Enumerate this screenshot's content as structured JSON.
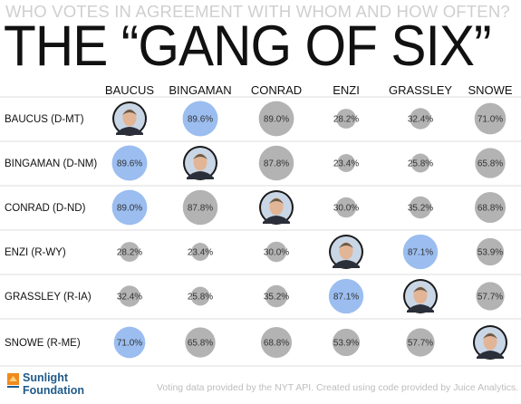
{
  "header": {
    "subtitle": "WHO VOTES IN AGREEMENT WITH WHOM AND HOW OFTEN?",
    "title": "THE “GANG OF SIX”"
  },
  "footer": {
    "credit": "Voting data provided by the NYT API. Created using code provided by Juice Analytics.",
    "logo_line1": "Sunlight",
    "logo_line2": "Foundation"
  },
  "colors": {
    "highlight": "#9bbdf0",
    "normal": "#b3b3b3",
    "logo_orange": "#f08a1c",
    "logo_blue": "#1f5a8a"
  },
  "chart_data": {
    "type": "heatmap",
    "title": "THE “GANG OF SIX”",
    "subtitle": "WHO VOTES IN AGREEMENT WITH WHOM AND HOW OFTEN?",
    "columns": [
      "BAUCUS",
      "BINGAMAN",
      "CONRAD",
      "ENZI",
      "GRASSLEY",
      "SNOWE"
    ],
    "rows": [
      "BAUCUS (D-MT)",
      "BINGAMAN (D-NM)",
      "CONRAD (D-ND)",
      "ENZI (R-WY)",
      "GRASSLEY (R-IA)",
      "SNOWE (R-ME)"
    ],
    "values": [
      [
        null,
        89.6,
        89.0,
        28.2,
        32.4,
        71.0
      ],
      [
        89.6,
        null,
        87.8,
        23.4,
        25.8,
        65.8
      ],
      [
        89.0,
        87.8,
        null,
        30.0,
        35.2,
        68.8
      ],
      [
        28.2,
        23.4,
        30.0,
        null,
        87.1,
        53.9
      ],
      [
        32.4,
        25.8,
        35.2,
        87.1,
        null,
        57.7
      ],
      [
        71.0,
        65.8,
        68.8,
        53.9,
        57.7,
        null
      ]
    ],
    "labels": [
      [
        "",
        "89.6%",
        "89.0%",
        "28.2%",
        "32.4%",
        "71.0%"
      ],
      [
        "89.6%",
        "",
        "87.8%",
        "23.4%",
        "25.8%",
        "65.8%"
      ],
      [
        "89.0%",
        "87.8%",
        "",
        "30.0%",
        "35.2%",
        "68.8%"
      ],
      [
        "28.2%",
        "23.4%",
        "30.0%",
        "",
        "87.1%",
        "53.9%"
      ],
      [
        "32.4%",
        "25.8%",
        "35.2%",
        "87.1%",
        "",
        "57.7%"
      ],
      [
        "71.0%",
        "65.8%",
        "68.8%",
        "53.9%",
        "57.7%",
        ""
      ]
    ],
    "highlighted": [
      [
        false,
        true,
        false,
        false,
        false,
        false
      ],
      [
        true,
        false,
        false,
        false,
        false,
        false
      ],
      [
        true,
        false,
        false,
        false,
        false,
        false
      ],
      [
        false,
        false,
        false,
        false,
        true,
        false
      ],
      [
        false,
        false,
        false,
        true,
        false,
        false
      ],
      [
        true,
        false,
        false,
        false,
        false,
        false
      ]
    ]
  }
}
